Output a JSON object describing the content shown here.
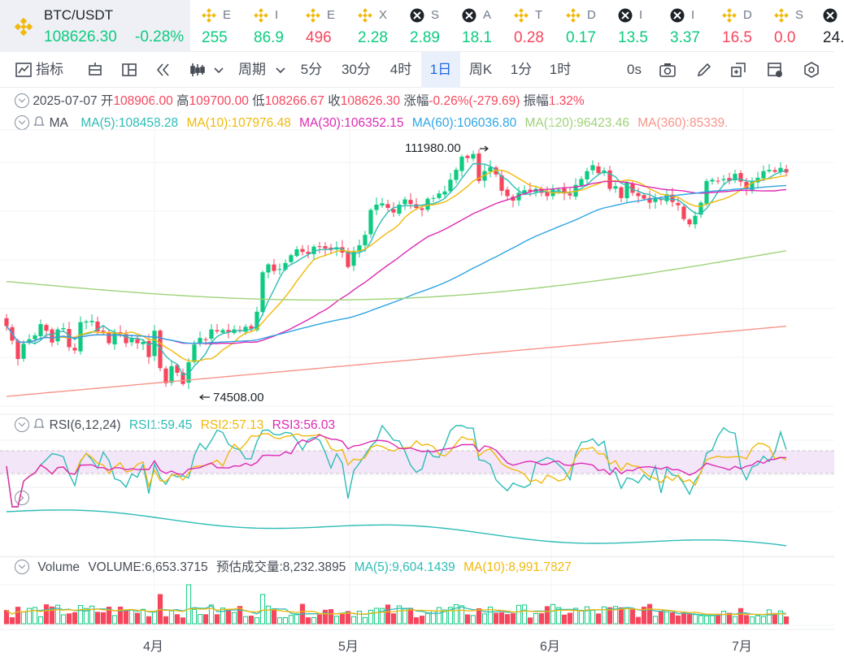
{
  "active_symbol": {
    "name": "BTC/USDT",
    "price": "108626.30",
    "change": "-0.28%"
  },
  "ticker_items": [
    {
      "name": "E",
      "value": "255",
      "dir": "up",
      "icon": "binance-coin-icon"
    },
    {
      "name": "I",
      "value": "86.9",
      "dir": "up",
      "icon": "binance-coin-icon"
    },
    {
      "name": "E",
      "value": "496",
      "dir": "down",
      "icon": "binance-coin-icon"
    },
    {
      "name": "X",
      "value": "2.28",
      "dir": "up",
      "icon": "binance-coin-icon"
    },
    {
      "name": "S",
      "value": "2.89",
      "dir": "up",
      "icon": "x-coin-icon"
    },
    {
      "name": "A",
      "value": "18.1",
      "dir": "up",
      "icon": "x-coin-icon"
    },
    {
      "name": "T",
      "value": "0.28",
      "dir": "down",
      "icon": "binance-coin-icon"
    },
    {
      "name": "D",
      "value": "0.17",
      "dir": "up",
      "icon": "binance-coin-icon"
    },
    {
      "name": "I",
      "value": "13.5",
      "dir": "up",
      "icon": "x-coin-icon"
    },
    {
      "name": "I",
      "value": "3.37",
      "dir": "up",
      "icon": "x-coin-icon"
    },
    {
      "name": "D",
      "value": "16.5",
      "dir": "down",
      "icon": "binance-coin-icon"
    },
    {
      "name": "S",
      "value": "0.0",
      "dir": "down",
      "icon": "binance-coin-icon"
    },
    {
      "name": "",
      "value": "24.",
      "dir": "neutral",
      "icon": "x-coin-icon"
    }
  ],
  "toolbar": {
    "indicator_label": "指标",
    "period_label": "周期",
    "intervals": [
      "5分",
      "30分",
      "4时",
      "1日",
      "周K",
      "1分",
      "1时"
    ],
    "selected_interval": "1日",
    "countdown": "0s"
  },
  "ohlc": {
    "date": "2025-07-07",
    "open_label": "开",
    "open": "108906.00",
    "high_label": "高",
    "high": "109700.00",
    "low_label": "低",
    "low": "108266.67",
    "close_label": "收",
    "close": "108626.30",
    "change_label": "涨幅",
    "change": "-0.26%(-279.69)",
    "amplitude_label": "振幅",
    "amplitude": "1.32%"
  },
  "ma_row": {
    "name": "MA",
    "ma5": "MA(5):108458.28",
    "ma10": "MA(10):107976.48",
    "ma30": "MA(30):106352.15",
    "ma60": "MA(60):106036.80",
    "ma120": "MA(120):96423.46",
    "ma360": "MA(360):85339."
  },
  "rsi_row": {
    "name": "RSI(6,12,24)",
    "rsi1": "RSI1:59.45",
    "rsi2": "RSI2:57.13",
    "rsi3": "RSI3:56.03"
  },
  "volume_row": {
    "name": "Volume",
    "volume": "VOLUME:6,653.3715",
    "estimate_label": "预估成交量:",
    "estimate": "8,232.3895",
    "ma5": "MA(5):9,604.1439",
    "ma10": "MA(10):8,991.7827"
  },
  "annotations": {
    "high": "111980.00",
    "low": "74508.00"
  },
  "x_axis": [
    "4月",
    "5月",
    "6月",
    "7月"
  ],
  "colors": {
    "up": "#0ecb81",
    "down": "#f6465d",
    "ma5": "#2dbcb6",
    "ma10": "#f0b90b",
    "ma30": "#dd2ab3",
    "ma60": "#2ea5e3",
    "ma120": "#9fd27a",
    "ma360": "#f7948a"
  },
  "chart_data": {
    "type": "line",
    "closes": [
      85200,
      83000,
      80200,
      82500,
      83200,
      83800,
      85500,
      84500,
      82700,
      84700,
      84900,
      82000,
      81500,
      85800,
      85900,
      86000,
      84400,
      84300,
      82600,
      84200,
      84000,
      82600,
      83300,
      82600,
      82800,
      80500,
      84500,
      78800,
      76500,
      79100,
      78100,
      76400,
      79700,
      82400,
      83400,
      83200,
      84700,
      84400,
      84600,
      84300,
      84700,
      84400,
      85100,
      84800,
      87400,
      93400,
      94600,
      93600,
      93900,
      94800,
      96000,
      96900,
      96500,
      96200,
      97300,
      97300,
      97000,
      96800,
      97200,
      96400,
      94200,
      96600,
      97500,
      99100,
      102900,
      103700,
      103900,
      103200,
      102500,
      103700,
      104500,
      103800,
      103200,
      102900,
      104600,
      104700,
      105400,
      105700,
      107500,
      109000,
      111000,
      110800,
      111400,
      107300,
      108800,
      109400,
      108300,
      105800,
      105000,
      104300,
      105500,
      105900,
      105700,
      106100,
      105500,
      105000,
      106000,
      106000,
      105400,
      105100,
      106700,
      107600,
      108800,
      109700,
      108500,
      108900,
      106100,
      106500,
      104700,
      107100,
      105500,
      105000,
      104600,
      104000,
      104700,
      104400,
      105300,
      104100,
      103600,
      101500,
      100700,
      102000,
      104000,
      107300,
      107500,
      107300,
      107600,
      107300,
      108400,
      107200,
      106100,
      107200,
      107800,
      108800,
      109000,
      108700,
      109300,
      108600
    ]
  }
}
